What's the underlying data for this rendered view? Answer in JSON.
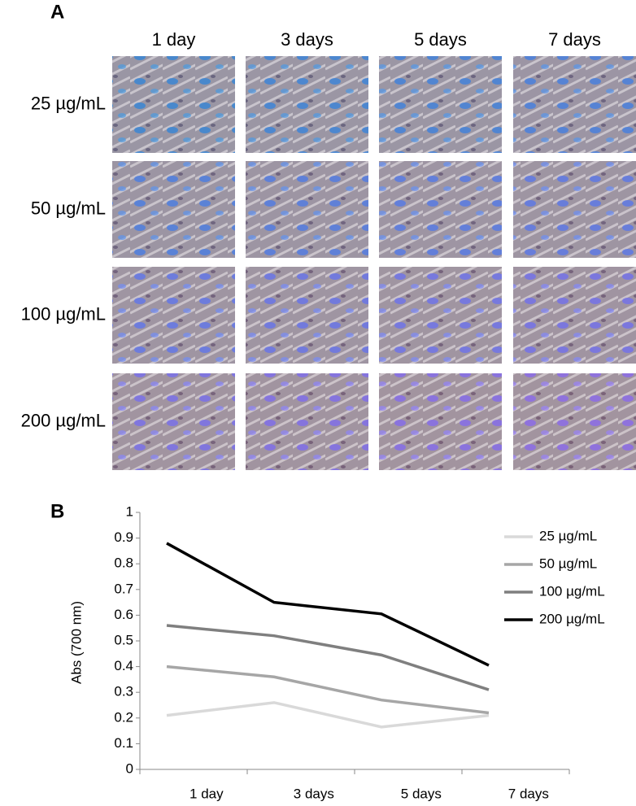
{
  "panel_a": {
    "label": "A",
    "columns": [
      "1 day",
      "3 days",
      "5 days",
      "7 days"
    ],
    "rows": [
      "25 µg/mL",
      "50 µg/mL",
      "100 µg/mL",
      "200 µg/mL"
    ]
  },
  "chart_data": {
    "type": "line",
    "label": "B",
    "y_label": "Abs  (700 nm)",
    "categories": [
      "1 day",
      "3 days",
      "5 days",
      "7 days"
    ],
    "series": [
      {
        "name": "25 µg/mL",
        "color": "#d9d9d9",
        "values": [
          0.21,
          0.26,
          0.165,
          0.21
        ]
      },
      {
        "name": "50 µg/mL",
        "color": "#a6a6a6",
        "values": [
          0.4,
          0.36,
          0.27,
          0.22
        ]
      },
      {
        "name": "100 µg/mL",
        "color": "#7f7f7f",
        "values": [
          0.56,
          0.52,
          0.445,
          0.31
        ]
      },
      {
        "name": "200 µg/mL",
        "color": "#000000",
        "values": [
          0.88,
          0.65,
          0.605,
          0.405
        ]
      }
    ],
    "ylim": [
      0,
      1
    ],
    "yticks": [
      0,
      0.1,
      0.2,
      0.3,
      0.4,
      0.5,
      0.6,
      0.7,
      0.8,
      0.9,
      1
    ],
    "legend": "upper right"
  }
}
